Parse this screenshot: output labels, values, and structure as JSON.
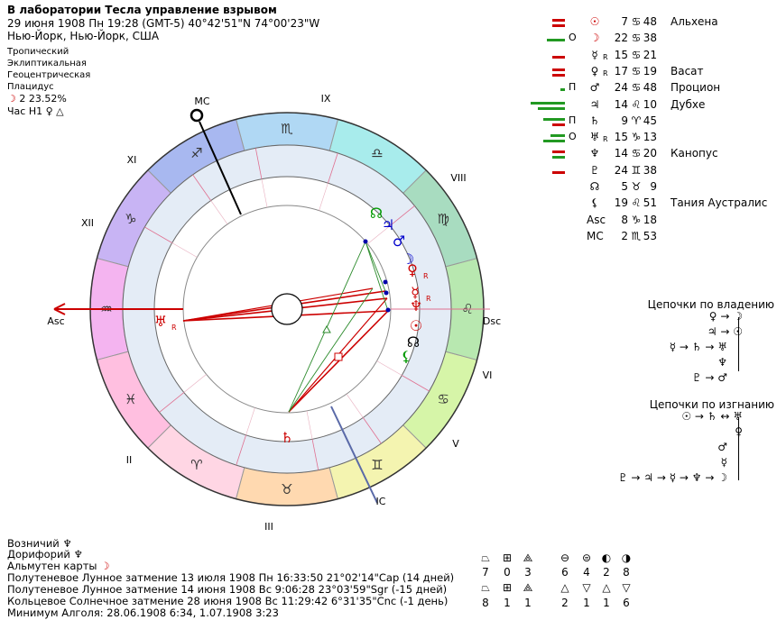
{
  "header": {
    "title": "В лаборатории Тесла управление взрывом",
    "date_line": "29 июня 1908  Пн  19:28 (GMT-5) 40°42'51\"N  74°00'23\"W",
    "place": "Нью-Йорк, Нью-Йорк, США",
    "settings": [
      "Тропический",
      "Эклиптикальная",
      "Геоцентрическая",
      "Плацидус"
    ],
    "moon_phase_glyph": "☽",
    "moon_phase_value": "2 23.52%",
    "hour_label": "Час Н1",
    "hour_glyph1": "♀",
    "hour_glyph2": "△"
  },
  "wheel": {
    "labels": {
      "mc": "MC",
      "ic": "IC",
      "asc": "Asc",
      "dsc": "Dsc",
      "h1": "I",
      "h2": "II",
      "h3": "III",
      "h4": "",
      "h5": "V",
      "h6": "VI",
      "h7": "",
      "h8": "VIII",
      "h9": "IX",
      "h10": "",
      "h11": "XI",
      "h12": "XII"
    },
    "signs": [
      {
        "glyph": "♈",
        "color": "#ffd6e4"
      },
      {
        "glyph": "♉",
        "color": "#ffd9b0"
      },
      {
        "glyph": "♊",
        "color": "#f4f4b0"
      },
      {
        "glyph": "♋",
        "color": "#d6f5a8"
      },
      {
        "glyph": "♌",
        "color": "#b8e8b0"
      },
      {
        "glyph": "♍",
        "color": "#a8dcc0"
      },
      {
        "glyph": "♎",
        "color": "#a8ecec"
      },
      {
        "glyph": "♏",
        "color": "#b0d8f4"
      },
      {
        "glyph": "♐",
        "color": "#a8b8f0"
      },
      {
        "glyph": "♑",
        "color": "#c8b4f4"
      },
      {
        "glyph": "♒",
        "color": "#f4b4f0"
      },
      {
        "glyph": "♓",
        "color": "#ffbfe0"
      }
    ],
    "inner_planets": [
      {
        "glyph": "☊",
        "color": "#009900"
      },
      {
        "glyph": "♃",
        "color": "#0000cc"
      },
      {
        "glyph": "♂",
        "color": "#0000cc"
      },
      {
        "glyph": "☽",
        "color": "#0000cc"
      },
      {
        "glyph": "☿",
        "color": "#cc0000",
        "retro": "R"
      },
      {
        "glyph": "♀",
        "color": "#cc0000",
        "retro": "R"
      },
      {
        "glyph": "♆",
        "color": "#cc0000"
      },
      {
        "glyph": "☉",
        "color": "#cc0000"
      },
      {
        "glyph": "☊",
        "color": "#000000"
      },
      {
        "glyph": "⚸",
        "color": "#009900"
      },
      {
        "glyph": "♅",
        "color": "#cc0000",
        "retro": "R"
      },
      {
        "glyph": "♄",
        "color": "#cc0000"
      }
    ]
  },
  "planets": [
    {
      "glyph": "☉",
      "color": "#cc0000",
      "mark": "",
      "retro": "",
      "deg": "7",
      "sign": "♋",
      "min": "48",
      "star": "Альхена",
      "bars": [
        {
          "c": "#cc0000",
          "w": 14,
          "y": 4
        },
        {
          "c": "#cc0000",
          "w": 14,
          "y": 10
        }
      ]
    },
    {
      "glyph": "☽",
      "color": "#cc0000",
      "mark": "О",
      "retro": "",
      "deg": "22",
      "sign": "♋",
      "min": "38",
      "star": "",
      "bars": [
        {
          "c": "#229922",
          "w": 20,
          "y": 8
        }
      ]
    },
    {
      "glyph": "☿",
      "color": "#000000",
      "mark": "",
      "retro": "R",
      "deg": "15",
      "sign": "♋",
      "min": "21",
      "star": "",
      "bars": [
        {
          "c": "#cc0000",
          "w": 14,
          "y": 8
        }
      ]
    },
    {
      "glyph": "♀",
      "color": "#000000",
      "mark": "",
      "retro": "R",
      "deg": "17",
      "sign": "♋",
      "min": "19",
      "star": "Васат",
      "bars": [
        {
          "c": "#cc0000",
          "w": 14,
          "y": 4
        },
        {
          "c": "#cc0000",
          "w": 14,
          "y": 10
        }
      ]
    },
    {
      "glyph": "♂",
      "color": "#000000",
      "mark": "П",
      "retro": "",
      "deg": "24",
      "sign": "♋",
      "min": "48",
      "star": "Процион",
      "bars": [
        {
          "c": "#229922",
          "w": 5,
          "y": 8
        }
      ]
    },
    {
      "glyph": "♃",
      "color": "#000000",
      "mark": "",
      "retro": "",
      "deg": "14",
      "sign": "♌",
      "min": "10",
      "star": "Дубхе",
      "bars": [
        {
          "c": "#229922",
          "w": 38,
          "y": 4
        },
        {
          "c": "#229922",
          "w": 30,
          "y": 10
        }
      ]
    },
    {
      "glyph": "♄",
      "color": "#000000",
      "mark": "П",
      "retro": "",
      "deg": "9",
      "sign": "♈",
      "min": "45",
      "star": "",
      "bars": [
        {
          "c": "#229922",
          "w": 24,
          "y": 4
        },
        {
          "c": "#cc0000",
          "w": 14,
          "y": 10
        }
      ]
    },
    {
      "glyph": "♅",
      "color": "#000000",
      "mark": "О",
      "retro": "R",
      "deg": "15",
      "sign": "♑",
      "min": "13",
      "star": "",
      "bars": [
        {
          "c": "#229922",
          "w": 16,
          "y": 4
        },
        {
          "c": "#229922",
          "w": 24,
          "y": 10
        }
      ]
    },
    {
      "glyph": "♆",
      "color": "#000000",
      "mark": "",
      "retro": "",
      "deg": "14",
      "sign": "♋",
      "min": "20",
      "star": "Канопус",
      "bars": [
        {
          "c": "#cc0000",
          "w": 14,
          "y": 4
        },
        {
          "c": "#229922",
          "w": 14,
          "y": 10
        }
      ]
    },
    {
      "glyph": "♇",
      "color": "#000000",
      "mark": "",
      "retro": "",
      "deg": "24",
      "sign": "♊",
      "min": "38",
      "star": "",
      "bars": [
        {
          "c": "#cc0000",
          "w": 14,
          "y": 8
        }
      ]
    },
    {
      "glyph": "☊",
      "color": "#000000",
      "mark": "",
      "retro": "",
      "deg": "5",
      "sign": "♉",
      "min": "9",
      "star": "",
      "bars": []
    },
    {
      "glyph": "⚸",
      "color": "#000000",
      "mark": "",
      "retro": "",
      "deg": "19",
      "sign": "♌",
      "min": "51",
      "star": "Тания Аустралис",
      "bars": []
    },
    {
      "glyph": "Asc",
      "color": "#000000",
      "mark": "",
      "retro": "",
      "deg": "8",
      "sign": "♑",
      "min": "18",
      "star": "",
      "bars": []
    },
    {
      "glyph": "MC",
      "color": "#000000",
      "mark": "",
      "retro": "",
      "deg": "2",
      "sign": "♏",
      "min": "53",
      "star": "",
      "bars": []
    }
  ],
  "chains_rule": {
    "title": "Цепочки по владению",
    "rows": [
      "♀ → ☽",
      "♃ → ☉",
      "☿ → ♄ → ♅",
      "♆",
      "♇ → ♂"
    ]
  },
  "chains_exile": {
    "title": "Цепочки по изгнанию",
    "rows": [
      "☉ → ♄ ↔ ♅",
      "♀",
      "♂",
      "☿",
      "♇ → ♃ → ☿ → ♆ → ☽"
    ]
  },
  "bottom": {
    "vozn_label": "Возничий",
    "vozn_glyph": "♆",
    "dor_label": "Дорифорий",
    "dor_glyph": "♆",
    "alm_label": "Альмутен карты",
    "alm_glyph": "☽",
    "events": [
      "Полутеневое Лунное затмение 13 июля 1908 Пн 16:33:50 21°02'14\"Cap (14 дней)",
      "Полутеневое Лунное затмение 14 июня 1908 Вс  9:06:28 23°03'59\"Sgr (-15 дней)",
      "Кольцевое Солнечное затмение 28 июня 1908 Вс 11:29:42  6°31'35\"Cnc (-1 день)",
      "Минимум Алголя: 28.06.1908  6:34,  1.07.1908  3:23"
    ]
  },
  "stats": [
    {
      "glyph": "⏢",
      "value": "7"
    },
    {
      "glyph": "⊞",
      "value": "0"
    },
    {
      "glyph": "⟁",
      "value": "3"
    },
    {
      "glyph": "⊖",
      "value": "6"
    },
    {
      "glyph": "⊜",
      "value": "4"
    },
    {
      "glyph": "◐",
      "value": "2"
    },
    {
      "glyph": "◑",
      "value": "8"
    },
    {
      "glyph": "⏢",
      "value": "8"
    },
    {
      "glyph": "⊞",
      "value": "1"
    },
    {
      "glyph": "⟁",
      "value": "1"
    },
    {
      "glyph": "△",
      "value": "2"
    },
    {
      "glyph": "▽",
      "value": "1"
    },
    {
      "glyph": "△",
      "value": "1"
    },
    {
      "glyph": "▽",
      "value": "6"
    }
  ]
}
